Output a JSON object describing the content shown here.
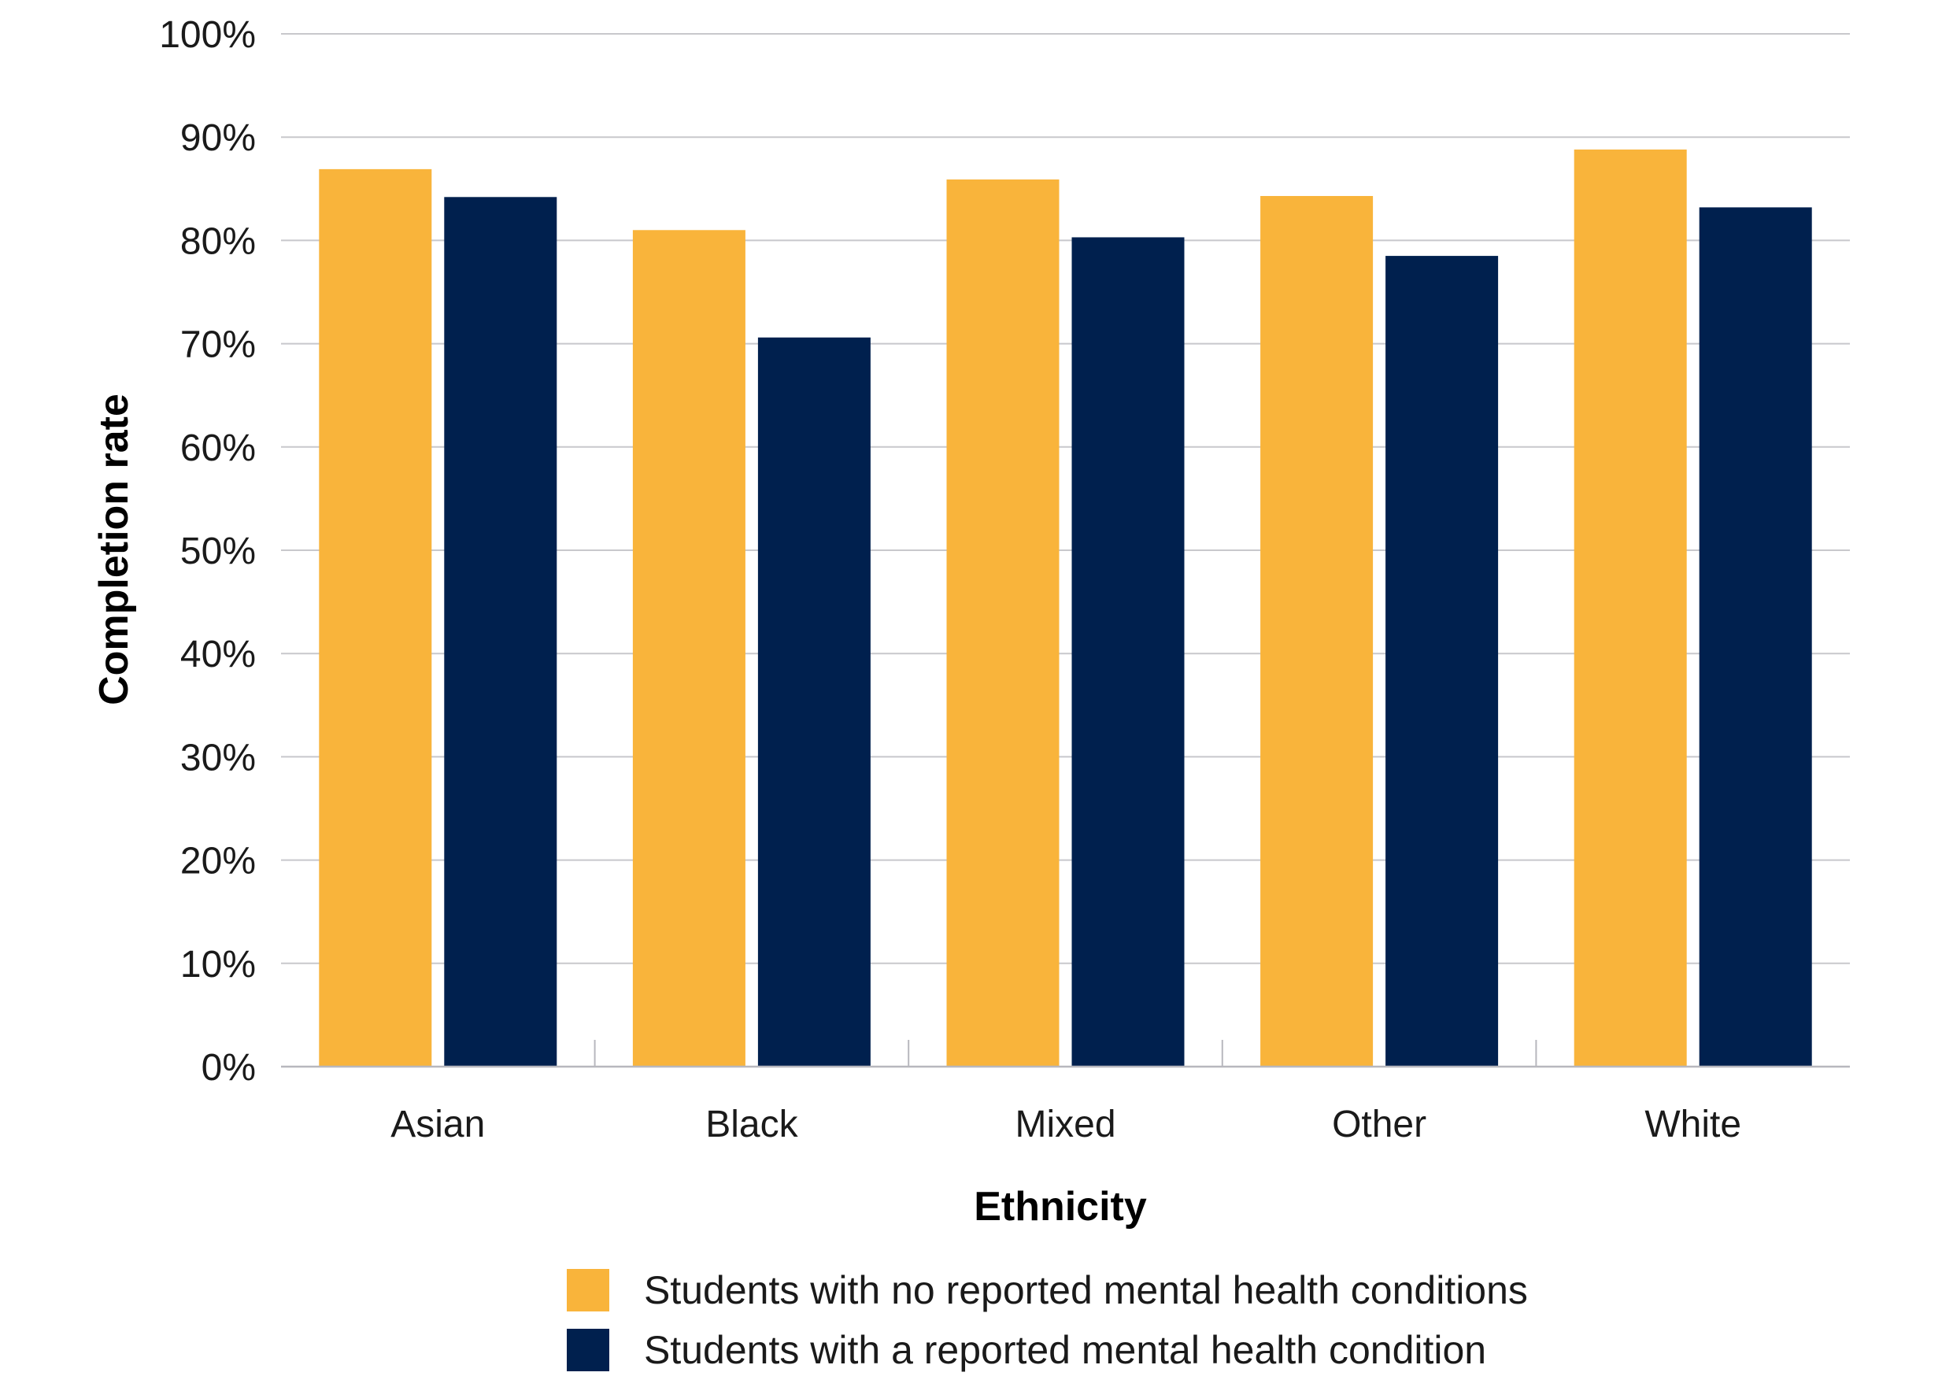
{
  "chart_data": {
    "type": "bar",
    "title": "",
    "xlabel": "Ethnicity",
    "ylabel": "Completion rate",
    "ylim": [
      0,
      100
    ],
    "yticks": [
      {
        "value": 0,
        "label": "0%"
      },
      {
        "value": 10,
        "label": "10%"
      },
      {
        "value": 20,
        "label": "20%"
      },
      {
        "value": 30,
        "label": "30%"
      },
      {
        "value": 40,
        "label": "40%"
      },
      {
        "value": 50,
        "label": "50%"
      },
      {
        "value": 60,
        "label": "60%"
      },
      {
        "value": 70,
        "label": "70%"
      },
      {
        "value": 80,
        "label": "80%"
      },
      {
        "value": 90,
        "label": "90%"
      },
      {
        "value": 100,
        "label": "100%"
      }
    ],
    "grid": true,
    "legend_position": "bottom",
    "categories": [
      "Asian",
      "Black",
      "Mixed",
      "Other",
      "White"
    ],
    "series": [
      {
        "name": "Students with no reported mental health conditions",
        "color": "#F9B43B",
        "values": [
          86.9,
          81.0,
          85.9,
          84.3,
          88.8
        ]
      },
      {
        "name": "Students with a reported mental health condition",
        "color": "#00204E",
        "values": [
          84.2,
          70.6,
          80.3,
          78.5,
          83.2
        ]
      }
    ],
    "grid_color": "#C8C8CC",
    "axis_color": "#B8B8BE"
  }
}
